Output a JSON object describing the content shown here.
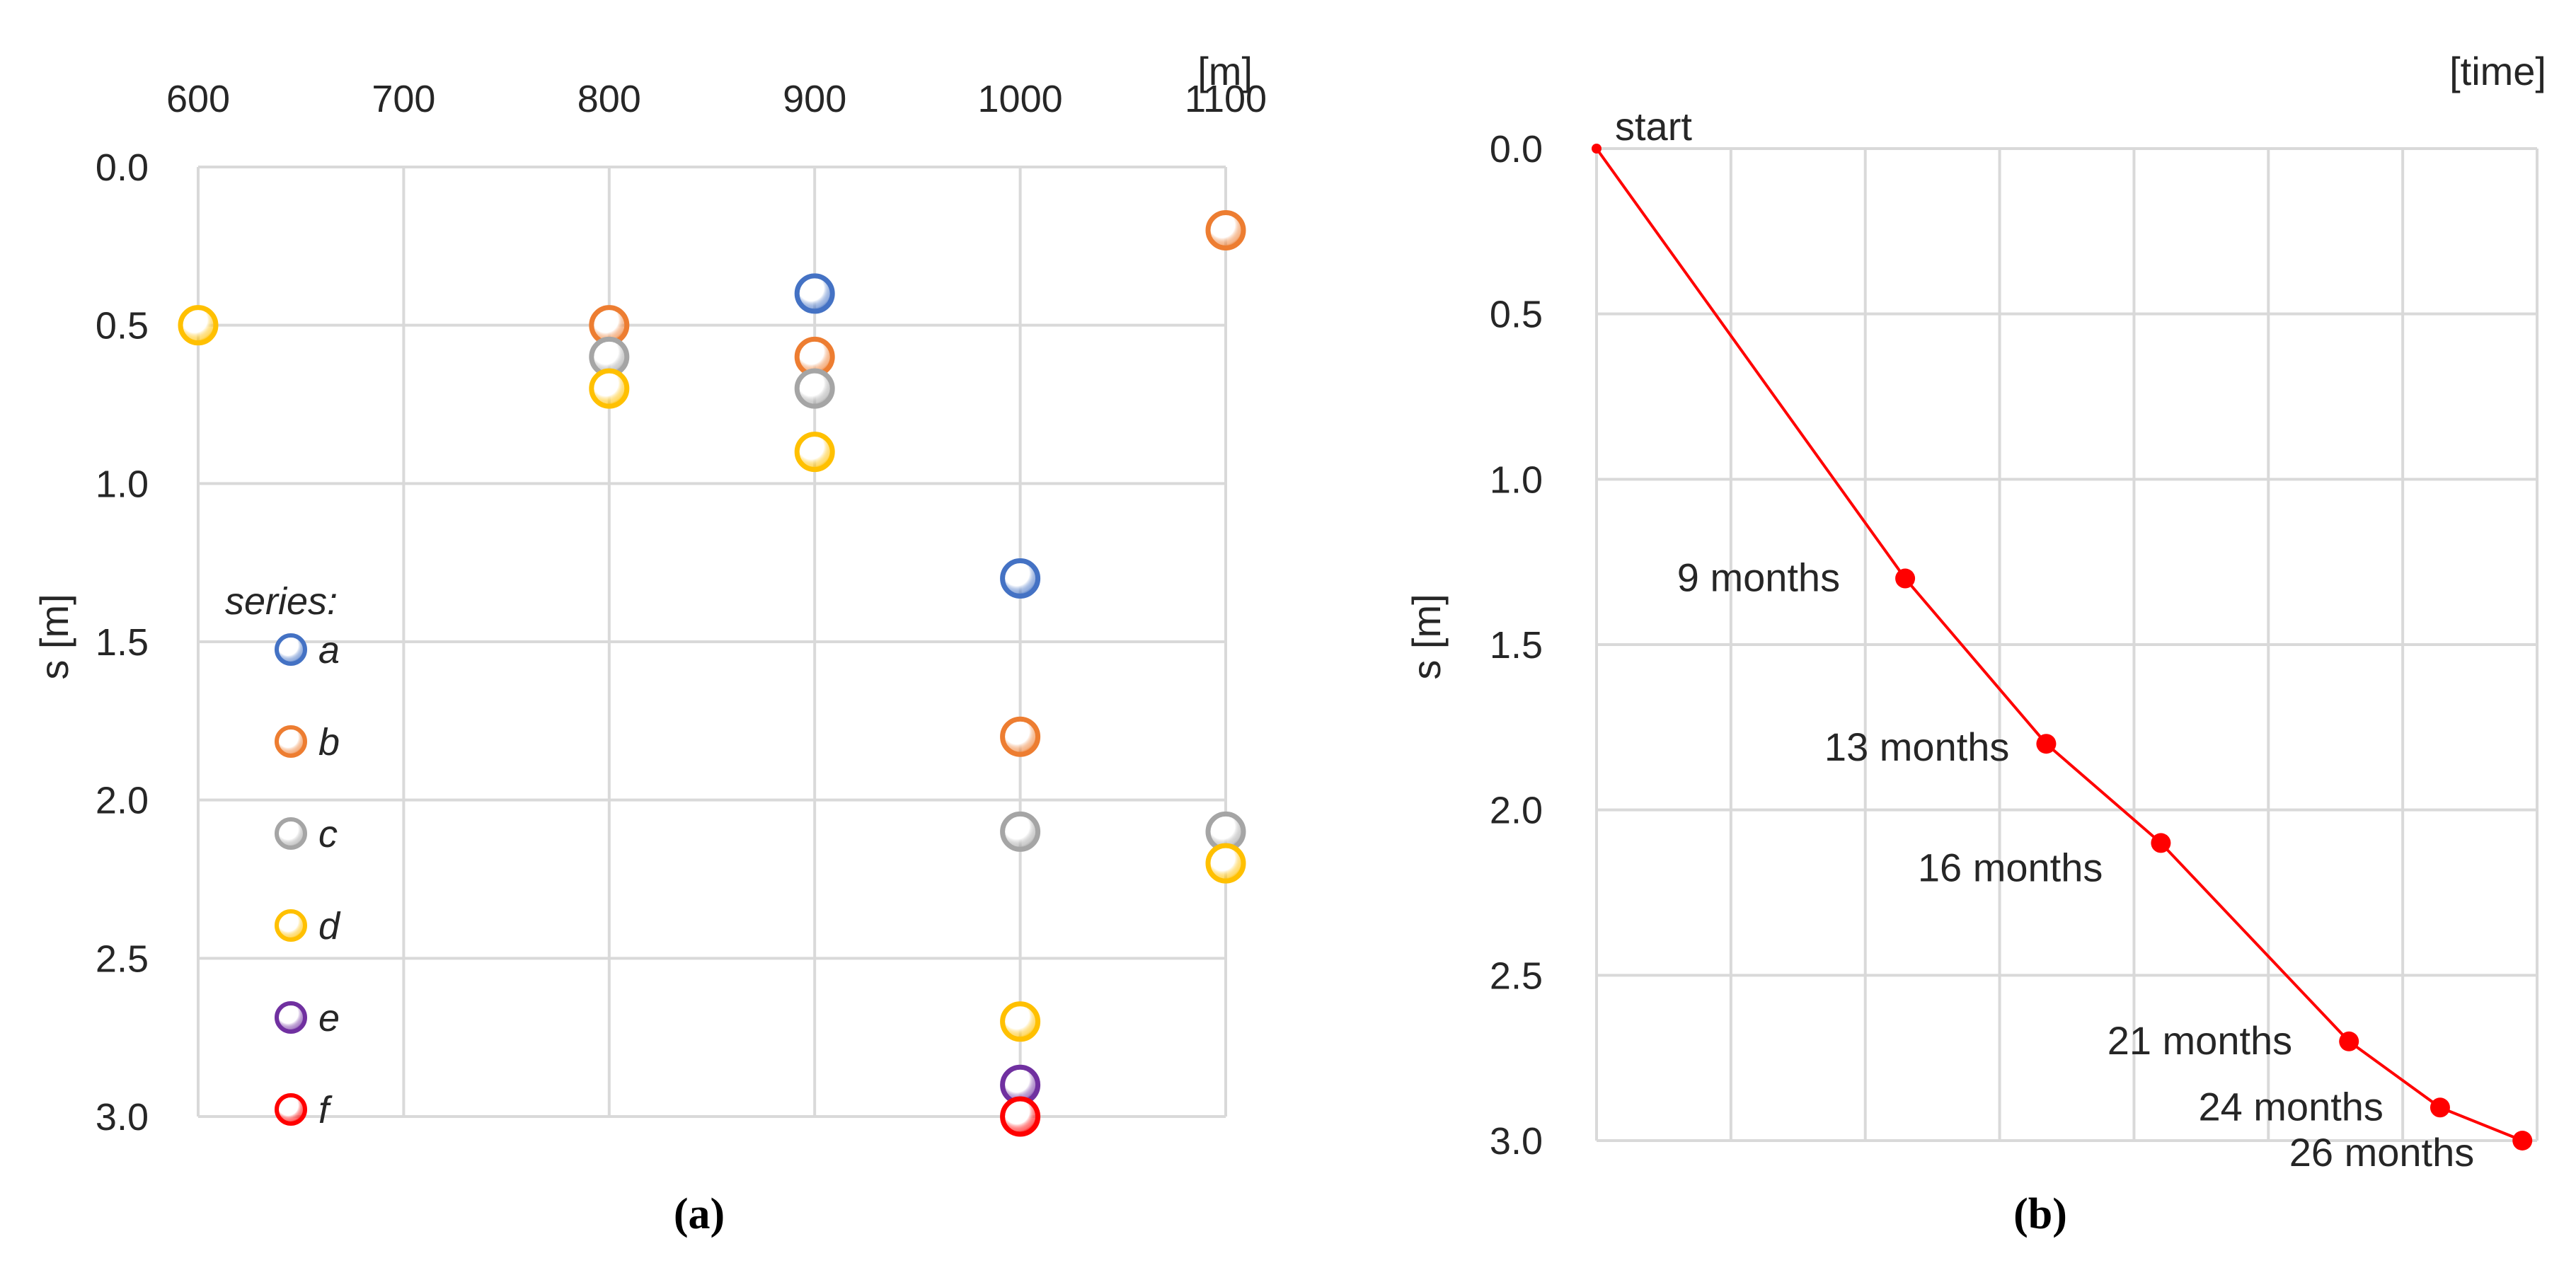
{
  "chart_data": [
    {
      "type": "scatter",
      "panel_label": "(a)",
      "x_unit_label": "[m]",
      "ylabel": "s [m]",
      "x_ticks": [
        600,
        700,
        800,
        900,
        1000,
        1100
      ],
      "y_ticks": [
        "0.0",
        "0.5",
        "1.0",
        "1.5",
        "2.0",
        "2.5",
        "3.0"
      ],
      "xlim": [
        600,
        1100
      ],
      "ylim": [
        0,
        3
      ],
      "y_inverted": true,
      "x_axis_position": "top",
      "legend_title": "series:",
      "legend_placement": "left",
      "series": [
        {
          "name": "a",
          "color": "#4472C4",
          "points": [
            [
              900,
              0.4
            ],
            [
              1000,
              1.3
            ]
          ]
        },
        {
          "name": "b",
          "color": "#ED7D31",
          "points": [
            [
              800,
              0.5
            ],
            [
              900,
              0.6
            ],
            [
              1000,
              1.8
            ],
            [
              1100,
              0.2
            ]
          ]
        },
        {
          "name": "c",
          "color": "#A5A5A5",
          "points": [
            [
              800,
              0.6
            ],
            [
              900,
              0.7
            ],
            [
              1000,
              2.1
            ],
            [
              1100,
              2.1
            ]
          ]
        },
        {
          "name": "d",
          "color": "#FFC000",
          "points": [
            [
              600,
              0.5
            ],
            [
              800,
              0.7
            ],
            [
              900,
              0.9
            ],
            [
              1000,
              2.7
            ],
            [
              1100,
              2.2
            ]
          ]
        },
        {
          "name": "e",
          "color": "#7030A0",
          "points": [
            [
              1000,
              2.9
            ]
          ]
        },
        {
          "name": "f",
          "color": "#FF0000",
          "points": [
            [
              1000,
              3.0
            ]
          ]
        }
      ]
    },
    {
      "type": "line",
      "panel_label": "(b)",
      "x_unit_label": "[time]",
      "ylabel": "s [m]",
      "y_ticks": [
        "0.0",
        "0.5",
        "1.0",
        "1.5",
        "2.0",
        "2.5",
        "3.0"
      ],
      "ylim": [
        0,
        3
      ],
      "y_inverted": true,
      "xlim": [
        0,
        32
      ],
      "color": "#FF0000",
      "points": [
        {
          "t": 0,
          "s": 0.0,
          "label": "start"
        },
        {
          "t": 10.5,
          "s": 1.3,
          "label": "9 months"
        },
        {
          "t": 15.3,
          "s": 1.8,
          "label": "13 months"
        },
        {
          "t": 19.2,
          "s": 2.1,
          "label": "16 months"
        },
        {
          "t": 25.6,
          "s": 2.7,
          "label": "21 months"
        },
        {
          "t": 28.7,
          "s": 2.9,
          "label": "24 months"
        },
        {
          "t": 31.5,
          "s": 3.0,
          "label": "26 months"
        }
      ]
    }
  ]
}
